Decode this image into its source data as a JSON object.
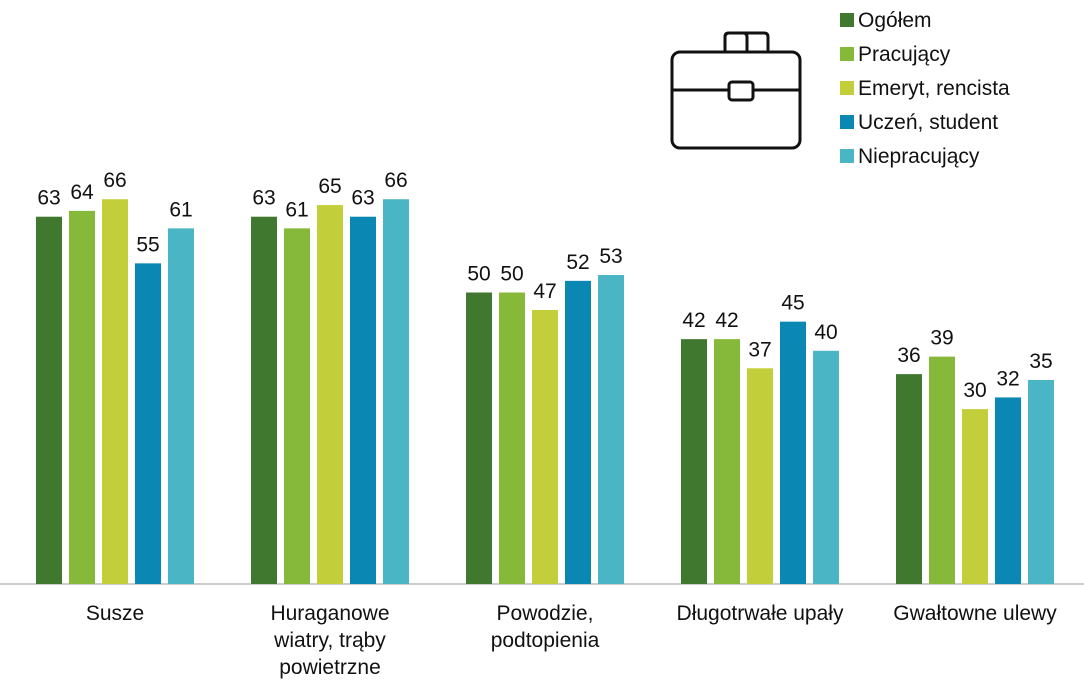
{
  "chart_data": {
    "type": "bar",
    "categories": [
      "Susze",
      "Huraganowe\nwiatry, trąby\npowietrzne",
      "Powodzie,\npodtopienia",
      "Długotrwałe upały",
      "Gwałtowne ulewy"
    ],
    "series": [
      {
        "name": "Ogółem",
        "color": "#41782f",
        "values": [
          63,
          63,
          50,
          42,
          36
        ]
      },
      {
        "name": "Pracujący",
        "color": "#86b83a",
        "values": [
          64,
          61,
          50,
          42,
          39
        ]
      },
      {
        "name": "Emeryt, rencista",
        "color": "#c3cf3a",
        "values": [
          66,
          65,
          47,
          37,
          30
        ]
      },
      {
        "name": "Uczeń, student",
        "color": "#0a87b2",
        "values": [
          55,
          63,
          52,
          45,
          32
        ]
      },
      {
        "name": "Niepracujący",
        "color": "#4ab5c4",
        "values": [
          61,
          66,
          53,
          40,
          35
        ]
      }
    ]
  }
}
